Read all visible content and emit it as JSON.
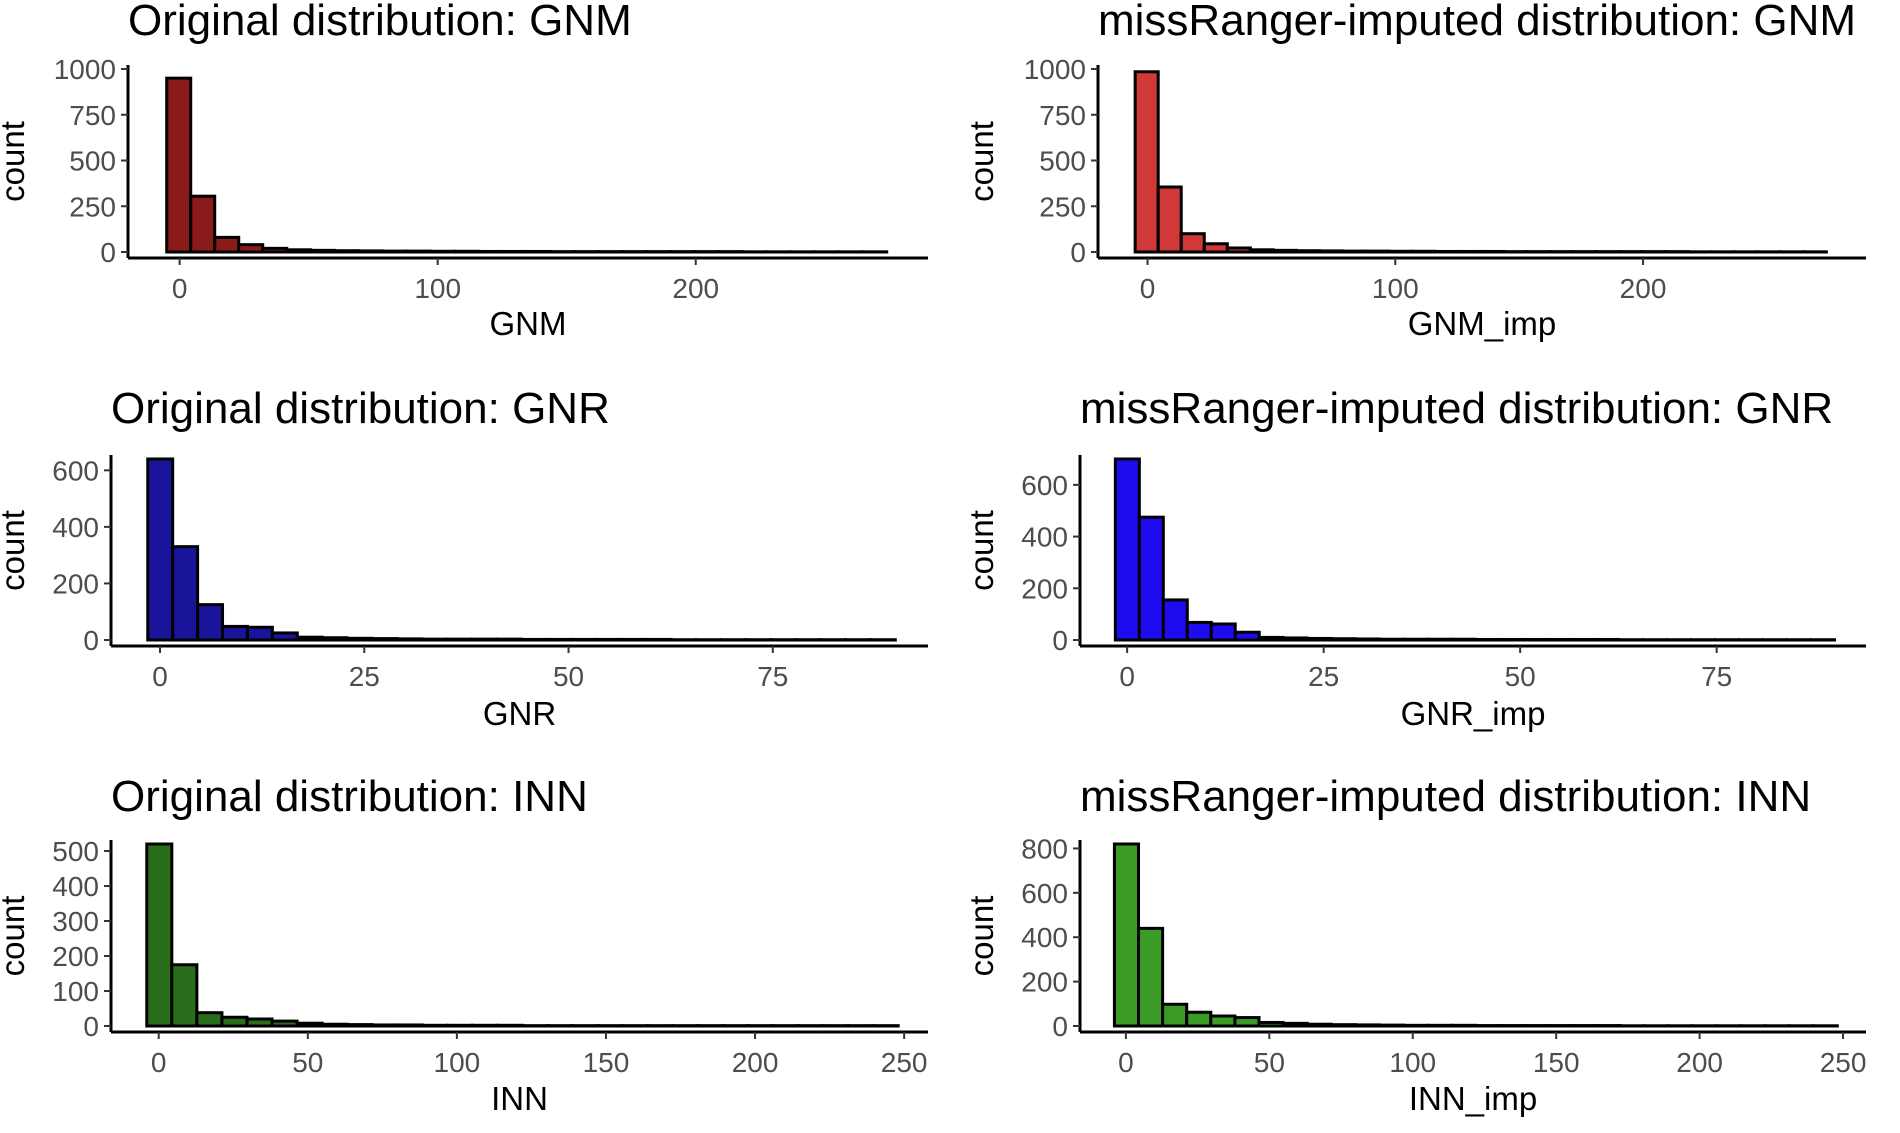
{
  "chart_data": [
    {
      "type": "histogram",
      "title": "Original distribution: GNM",
      "xlabel": "GNM",
      "ylabel": "count",
      "fill": "#8B1A1A",
      "bin_width": 9.3,
      "x_range": [
        -5,
        275
      ],
      "xlim": [
        -20,
        290
      ],
      "xticks": [
        0,
        100,
        200
      ],
      "ylim": [
        0,
        1000
      ],
      "yticks": [
        0,
        250,
        500,
        750,
        1000
      ],
      "counts": [
        950,
        305,
        80,
        40,
        20,
        12,
        9,
        7,
        6,
        5,
        5,
        4,
        4,
        3,
        3,
        3,
        2,
        2,
        2,
        2,
        2,
        2,
        2,
        2,
        1,
        1,
        1,
        1,
        1,
        1
      ]
    },
    {
      "type": "histogram",
      "title": "missRanger-imputed distribution: GNM",
      "xlabel": "GNM_imp",
      "ylabel": "count",
      "fill": "#D13838",
      "bin_width": 9.3,
      "x_range": [
        -5,
        275
      ],
      "xlim": [
        -20,
        290
      ],
      "xticks": [
        0,
        100,
        200
      ],
      "ylim": [
        0,
        1000
      ],
      "yticks": [
        0,
        250,
        500,
        750,
        1000
      ],
      "counts": [
        985,
        355,
        100,
        45,
        22,
        12,
        9,
        7,
        6,
        5,
        5,
        4,
        4,
        3,
        3,
        3,
        2,
        2,
        2,
        2,
        2,
        2,
        2,
        2,
        1,
        1,
        1,
        1,
        1,
        1
      ]
    },
    {
      "type": "histogram",
      "title": "Original distribution: GNR",
      "xlabel": "GNR",
      "ylabel": "count",
      "fill": "#19149A",
      "bin_width": 3.05,
      "x_range": [
        -1.5,
        90
      ],
      "xlim": [
        -6,
        94
      ],
      "xticks": [
        0,
        25,
        50,
        75
      ],
      "ylim": [
        0,
        640
      ],
      "yticks": [
        0,
        200,
        400,
        600
      ],
      "counts": [
        640,
        330,
        125,
        48,
        45,
        25,
        10,
        8,
        6,
        5,
        4,
        3,
        3,
        3,
        3,
        2,
        2,
        2,
        2,
        2,
        2,
        1,
        1,
        1,
        1,
        1,
        1,
        1,
        1,
        1
      ]
    },
    {
      "type": "histogram",
      "title": "missRanger-imputed distribution: GNR",
      "xlabel": "GNR_imp",
      "ylabel": "count",
      "fill": "#1E0BF0",
      "bin_width": 3.05,
      "x_range": [
        -1.5,
        90
      ],
      "xlim": [
        -6,
        94
      ],
      "xticks": [
        0,
        25,
        50,
        75
      ],
      "ylim": [
        0,
        700
      ],
      "yticks": [
        0,
        200,
        400,
        600
      ],
      "counts": [
        700,
        475,
        155,
        68,
        62,
        30,
        10,
        8,
        6,
        5,
        4,
        3,
        3,
        3,
        3,
        2,
        2,
        2,
        2,
        2,
        2,
        1,
        1,
        1,
        1,
        1,
        1,
        1,
        1,
        1
      ]
    },
    {
      "type": "histogram",
      "title": "Original distribution: INN",
      "xlabel": "INN",
      "ylabel": "count",
      "fill": "#2A6E1C",
      "bin_width": 8.4,
      "x_range": [
        -4,
        248
      ],
      "xlim": [
        -16,
        258
      ],
      "xticks": [
        0,
        50,
        100,
        150,
        200,
        250
      ],
      "ylim": [
        0,
        520
      ],
      "yticks": [
        0,
        100,
        200,
        300,
        400,
        500
      ],
      "counts": [
        520,
        175,
        38,
        25,
        20,
        14,
        8,
        5,
        4,
        3,
        3,
        2,
        2,
        2,
        2,
        1,
        1,
        1,
        1,
        1,
        1,
        1,
        1,
        1,
        1,
        1,
        1,
        1,
        1,
        1
      ]
    },
    {
      "type": "histogram",
      "title": "missRanger-imputed distribution: INN",
      "xlabel": "INN_imp",
      "ylabel": "count",
      "fill": "#3A9B27",
      "bin_width": 8.4,
      "x_range": [
        -4,
        248
      ],
      "xlim": [
        -16,
        258
      ],
      "xticks": [
        0,
        50,
        100,
        150,
        200,
        250
      ],
      "ylim": [
        0,
        820
      ],
      "yticks": [
        0,
        200,
        400,
        600,
        800
      ],
      "counts": [
        820,
        440,
        98,
        62,
        45,
        38,
        16,
        12,
        8,
        6,
        5,
        4,
        3,
        3,
        3,
        2,
        2,
        2,
        2,
        2,
        2,
        1,
        1,
        1,
        1,
        1,
        1,
        1,
        1,
        1
      ]
    }
  ]
}
